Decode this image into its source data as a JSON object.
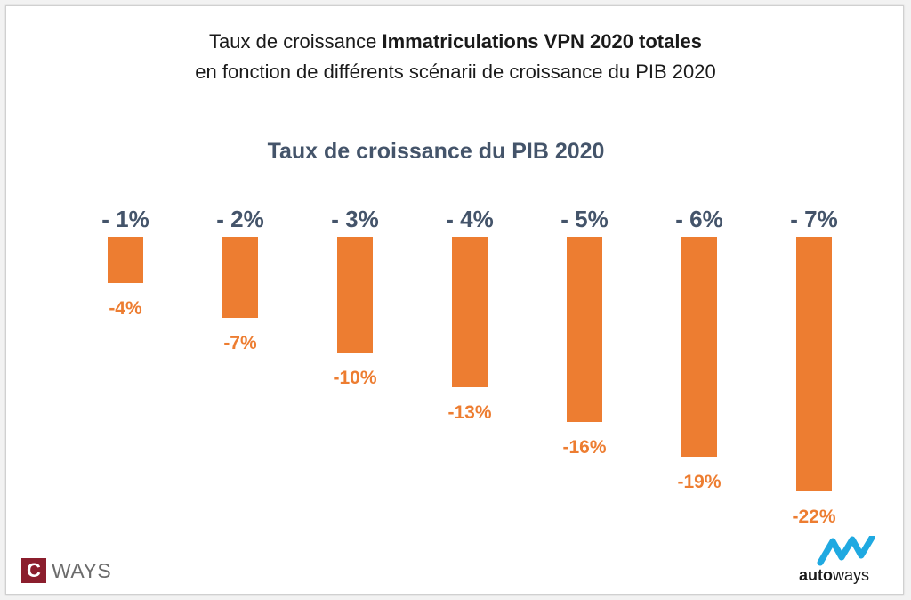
{
  "title_line1_prefix": "Taux de croissance ",
  "title_line1_bold": "Immatriculations VPN 2020 totales",
  "title_line2": "en fonction de différents scénarii de croissance du PIB 2020",
  "colors": {
    "bar": "#ed7d31",
    "category_label": "#44546a",
    "value_label": "#ed7d31"
  },
  "chart_data": {
    "type": "bar",
    "title": "Taux de croissance du PIB 2020",
    "categories": [
      "- 1%",
      "- 2%",
      "- 3%",
      "- 4%",
      "- 5%",
      "- 6%",
      "- 7%"
    ],
    "values": [
      -4,
      -7,
      -10,
      -13,
      -16,
      -19,
      -22
    ],
    "value_labels": [
      "-4%",
      "-7%",
      "-10%",
      "-13%",
      "-16%",
      "-19%",
      "-22%"
    ],
    "xlabel": "",
    "ylabel": "",
    "grid": false,
    "legend": "none"
  },
  "logos": {
    "cways_letter": "C",
    "cways_text": "WAYS",
    "autoways_bold": "auto",
    "autoways_light": "ways"
  }
}
